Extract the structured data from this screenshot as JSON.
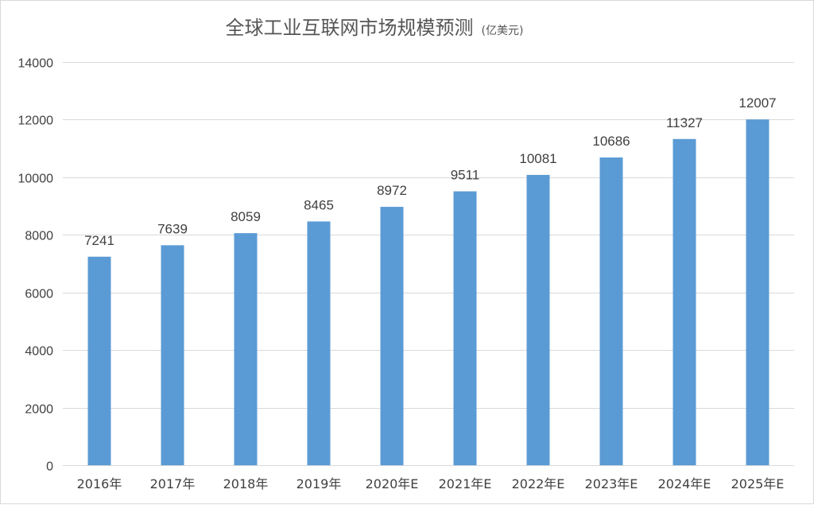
{
  "chart_data": {
    "type": "bar",
    "title": "全球工业互联网市场规模预测",
    "subtitle": "(亿美元)",
    "categories": [
      "2016年",
      "2017年",
      "2018年",
      "2019年",
      "2020年E",
      "2021年E",
      "2022年E",
      "2023年E",
      "2024年E",
      "2025年E"
    ],
    "values": [
      7241,
      7639,
      8059,
      8465,
      8972,
      9511,
      10081,
      10686,
      11327,
      12007
    ],
    "ylim": [
      0,
      14000
    ],
    "yticks": [
      0,
      2000,
      4000,
      6000,
      8000,
      10000,
      12000,
      14000
    ],
    "grid": true,
    "data_labels": true,
    "legend": "none",
    "colors": {
      "bar": "#5b9bd5",
      "grid": "#d9d9d9",
      "text": "#404040",
      "title": "#555555"
    }
  }
}
